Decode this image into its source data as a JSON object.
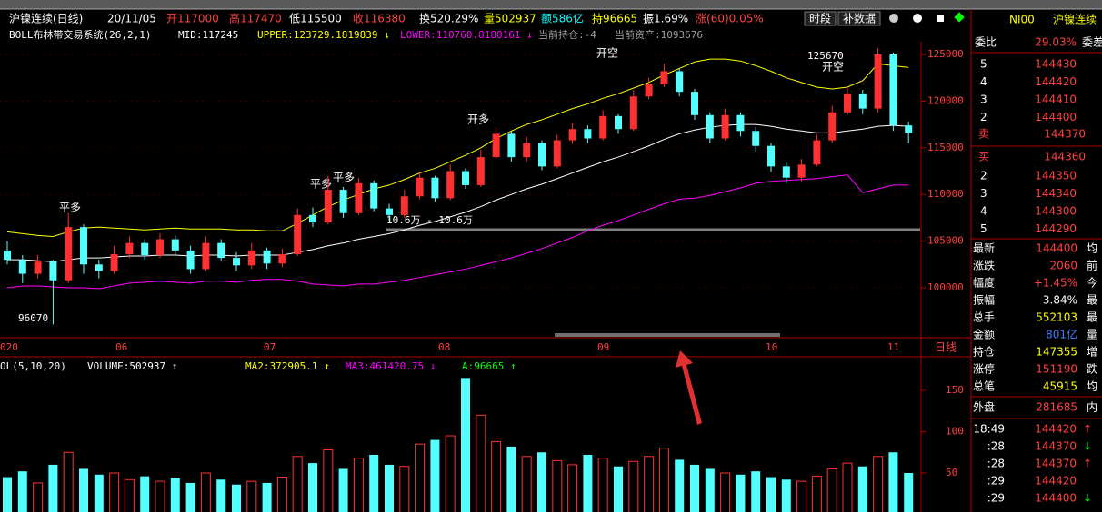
{
  "header": {
    "items": [
      {
        "text": "沪镍连续(日线)",
        "color": "#ffffff"
      },
      {
        "text": "20/11/05",
        "color": "#ffffff"
      },
      {
        "text": "开117000",
        "color": "#ff4040"
      },
      {
        "text": "高117470",
        "color": "#ff4040"
      },
      {
        "text": "低115500",
        "color": "#ffffff"
      },
      {
        "text": "收116380",
        "color": "#ff4040"
      },
      {
        "text": "换520.29%",
        "color": "#ffffff"
      },
      {
        "text": "量502937",
        "color": "#ffff00"
      },
      {
        "text": "额586亿",
        "color": "#00ffff"
      },
      {
        "text": "持96665",
        "color": "#ffff00"
      },
      {
        "text": "振1.69%",
        "color": "#ffffff"
      },
      {
        "text": "涨(60)0.05%",
        "color": "#ff4040"
      }
    ],
    "buttons": [
      "时段",
      "补数据"
    ]
  },
  "indicator": {
    "items": [
      {
        "text": "BOLL布林带交易系统(26,2,1)",
        "color": "#ffffff"
      },
      {
        "text": "MID:117245",
        "color": "#ffffff"
      },
      {
        "text": "UPPER:123729.1819839 ↓",
        "color": "#ffff00"
      },
      {
        "text": "LOWER:110760.8180161 ↓",
        "color": "#ff00ff"
      },
      {
        "text": "当前持仓:-4",
        "color": "#a0a0a0"
      },
      {
        "text": "当前资产:1093676",
        "color": "#a0a0a0"
      }
    ]
  },
  "price_ticks": [
    125000,
    120000,
    115000,
    110000,
    105000,
    100000
  ],
  "date_axis": [
    "020",
    "06",
    "07",
    "08",
    "09",
    "10",
    "11"
  ],
  "period": "日线",
  "annotations": [
    "96070",
    "125670",
    "10.6万 - 10.6万",
    "开空",
    "开空",
    "平多",
    "平多",
    "平多",
    "开多"
  ],
  "candles": [
    [
      104000,
      103000,
      105000,
      102500
    ],
    [
      103000,
      101500,
      103500,
      100500
    ],
    [
      101500,
      102800,
      103500,
      101000
    ],
    [
      102800,
      100800,
      103000,
      96070
    ],
    [
      100800,
      106500,
      108000,
      100500
    ],
    [
      106500,
      102500,
      106800,
      101500
    ],
    [
      102500,
      101800,
      103000,
      101000
    ],
    [
      101800,
      103600,
      104500,
      101500
    ],
    [
      103600,
      104800,
      105500,
      103200
    ],
    [
      104800,
      103500,
      105200,
      103000
    ],
    [
      103500,
      105200,
      105800,
      103200
    ],
    [
      105200,
      104000,
      105600,
      103500
    ],
    [
      104000,
      102000,
      104500,
      101500
    ],
    [
      102000,
      104800,
      105500,
      101800
    ],
    [
      104800,
      103200,
      105200,
      102800
    ],
    [
      103200,
      102400,
      103800,
      101800
    ],
    [
      102400,
      104000,
      104800,
      102000
    ],
    [
      104000,
      102600,
      104300,
      102000
    ],
    [
      102600,
      103600,
      104200,
      102200
    ],
    [
      103600,
      107800,
      108500,
      103400
    ],
    [
      107800,
      107000,
      108600,
      106500
    ],
    [
      107000,
      110500,
      112000,
      106800
    ],
    [
      110500,
      108000,
      110800,
      107500
    ],
    [
      108000,
      111200,
      111800,
      107800
    ],
    [
      111200,
      108500,
      111500,
      108200
    ],
    [
      108500,
      107800,
      109000,
      107200
    ],
    [
      107800,
      109800,
      110500,
      107500
    ],
    [
      109800,
      111800,
      112400,
      109500
    ],
    [
      111800,
      109600,
      112000,
      109200
    ],
    [
      109600,
      112500,
      113200,
      109400
    ],
    [
      112500,
      111000,
      112800,
      110600
    ],
    [
      111000,
      114000,
      114800,
      110800
    ],
    [
      114000,
      116500,
      117200,
      113800
    ],
    [
      116500,
      114000,
      116800,
      113500
    ],
    [
      114000,
      115500,
      116200,
      113500
    ],
    [
      115500,
      113000,
      115800,
      112600
    ],
    [
      113000,
      115800,
      116400,
      112800
    ],
    [
      115800,
      117000,
      117600,
      115400
    ],
    [
      117000,
      116000,
      117400,
      115500
    ],
    [
      116000,
      118400,
      119000,
      115800
    ],
    [
      118400,
      117000,
      118600,
      116500
    ],
    [
      117000,
      120500,
      121200,
      116800
    ],
    [
      120500,
      121800,
      122500,
      120200
    ],
    [
      121800,
      123200,
      124000,
      121500
    ],
    [
      123200,
      121000,
      123500,
      120500
    ],
    [
      121000,
      118500,
      121300,
      118000
    ],
    [
      118500,
      116000,
      118800,
      115500
    ],
    [
      116000,
      118500,
      119200,
      115800
    ],
    [
      118500,
      116800,
      118800,
      116200
    ],
    [
      116800,
      115200,
      117200,
      114600
    ],
    [
      115200,
      113000,
      115500,
      112400
    ],
    [
      113000,
      111800,
      113400,
      111200
    ],
    [
      111800,
      113200,
      113800,
      111400
    ],
    [
      113200,
      115800,
      116400,
      113000
    ],
    [
      115800,
      118800,
      119500,
      115500
    ],
    [
      118800,
      120800,
      121500,
      118500
    ],
    [
      120800,
      119200,
      121200,
      118600
    ],
    [
      119200,
      125000,
      125670,
      118800
    ],
    [
      125000,
      117400,
      125200,
      116800
    ],
    [
      117400,
      116600,
      117800,
      115500
    ]
  ],
  "bollinger": {
    "mid": [
      103000,
      103000,
      102900,
      102800,
      103000,
      103200,
      103200,
      103300,
      103400,
      103400,
      103500,
      103500,
      103400,
      103500,
      103500,
      103400,
      103500,
      103500,
      103500,
      103800,
      104100,
      104500,
      104800,
      105200,
      105500,
      105800,
      106200,
      106700,
      107100,
      107600,
      108100,
      108700,
      109400,
      110000,
      110600,
      111100,
      111700,
      112300,
      112900,
      113500,
      114000,
      114600,
      115200,
      115900,
      116500,
      116900,
      117200,
      117400,
      117500,
      117500,
      117300,
      117000,
      116800,
      116600,
      116600,
      116800,
      117000,
      117300,
      117400,
      117300
    ],
    "upper": [
      106000,
      105800,
      105600,
      105500,
      106000,
      106400,
      106500,
      106400,
      106300,
      106200,
      106300,
      106400,
      106300,
      106300,
      106300,
      106200,
      106200,
      106100,
      106100,
      106900,
      107800,
      108700,
      109400,
      110000,
      110600,
      111000,
      111600,
      112300,
      112800,
      113500,
      114200,
      115000,
      116000,
      116800,
      117500,
      118000,
      118600,
      119200,
      119700,
      120300,
      120800,
      121400,
      122000,
      122800,
      123500,
      124200,
      124500,
      124500,
      124300,
      123800,
      123200,
      122500,
      122000,
      121500,
      121300,
      121500,
      122200,
      124000,
      123800,
      123600
    ],
    "lower": [
      100000,
      100200,
      100200,
      100100,
      100000,
      100000,
      99900,
      100200,
      100500,
      100600,
      100700,
      100600,
      100500,
      100700,
      100700,
      100600,
      100800,
      100900,
      100900,
      100700,
      100400,
      100300,
      100200,
      100400,
      100400,
      100600,
      100800,
      101100,
      101400,
      101700,
      102000,
      102400,
      102800,
      103200,
      103700,
      104200,
      104800,
      105400,
      106100,
      106700,
      107200,
      107800,
      108400,
      109000,
      109500,
      109600,
      109900,
      110300,
      110700,
      111200,
      111400,
      111500,
      111600,
      111700,
      111900,
      112100,
      110200,
      110600,
      111000,
      111000
    ]
  },
  "volume": {
    "header": [
      {
        "text": "OL(5,10,20)",
        "color": "#ffffff"
      },
      {
        "text": "VOLUME:502937 ↑",
        "color": "#ffffff"
      },
      {
        "text": "MA2:372905.1 ↑",
        "color": "#ffff00"
      },
      {
        "text": "MA3:461420.75 ↓",
        "color": "#ff00ff"
      },
      {
        "text": "A:96665 ↑",
        "color": "#00ff00"
      }
    ],
    "ticks": [
      150,
      100,
      50
    ],
    "values": [
      45,
      52,
      38,
      60,
      75,
      55,
      48,
      50,
      42,
      46,
      40,
      44,
      38,
      50,
      42,
      36,
      40,
      38,
      45,
      70,
      62,
      78,
      55,
      68,
      72,
      60,
      58,
      85,
      90,
      95,
      165,
      120,
      88,
      82,
      70,
      75,
      65,
      60,
      72,
      68,
      58,
      64,
      70,
      80,
      66,
      60,
      55,
      50,
      48,
      52,
      45,
      42,
      40,
      46,
      55,
      62,
      58,
      70,
      75,
      50
    ]
  },
  "panel": {
    "code": "NI00",
    "name": "沪镍连续",
    "ratio_label": "委比",
    "ratio": "29.03%",
    "diff_label": "委差",
    "sell": [
      [
        "5",
        "144430"
      ],
      [
        "4",
        "144420"
      ],
      [
        "3",
        "144410"
      ],
      [
        "2",
        "144400"
      ]
    ],
    "sell1": [
      "卖",
      "144370"
    ],
    "buy1": [
      "买",
      "144360"
    ],
    "buy": [
      [
        "2",
        "144350"
      ],
      [
        "3",
        "144340"
      ],
      [
        "4",
        "144300"
      ],
      [
        "5",
        "144290"
      ]
    ],
    "stats": [
      [
        "最新",
        "144400",
        "均"
      ],
      [
        "涨跌",
        "2060",
        "前"
      ],
      [
        "幅度",
        "+1.45%",
        "今"
      ],
      [
        "振幅",
        "3.84%",
        "最"
      ],
      [
        "总手",
        "552103",
        "最"
      ],
      [
        "金额",
        "801亿",
        "量"
      ],
      [
        "持仓",
        "147355",
        "增"
      ],
      [
        "涨停",
        "151190",
        "跌"
      ],
      [
        "总笔",
        "45915",
        "均"
      ],
      [
        "外盘",
        "281685",
        "内"
      ]
    ],
    "stat_colors": [
      "#ff4040",
      "#ff4040",
      "#ff4040",
      "#ffffff",
      "#ffff00",
      "#4080ff",
      "#ffff00",
      "#ff4040",
      "#ffff00",
      "#ff4040"
    ],
    "trades": [
      [
        "18:49",
        "144420",
        "↑"
      ],
      [
        ":28",
        "144370",
        "↓"
      ],
      [
        ":28",
        "144370",
        "↑"
      ],
      [
        ":29",
        "144420"
      ],
      [
        ":29",
        "144400",
        "↓"
      ]
    ]
  }
}
